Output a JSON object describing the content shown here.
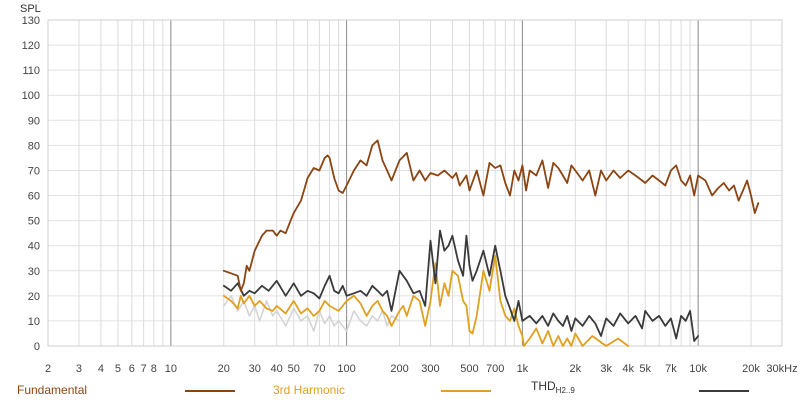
{
  "chart_data": {
    "type": "line",
    "ylabel": "SPL",
    "ylim": [
      0,
      130
    ],
    "yticks": [
      0,
      10,
      20,
      30,
      40,
      50,
      60,
      70,
      80,
      90,
      100,
      110,
      120,
      130
    ],
    "xscale": "log",
    "xlim": [
      2,
      30000
    ],
    "xticks": [
      {
        "v": 2,
        "t": "2"
      },
      {
        "v": 3,
        "t": "3"
      },
      {
        "v": 4,
        "t": "4"
      },
      {
        "v": 5,
        "t": "5"
      },
      {
        "v": 6,
        "t": "6"
      },
      {
        "v": 7,
        "t": "7"
      },
      {
        "v": 8,
        "t": "8"
      },
      {
        "v": 10,
        "t": "10"
      },
      {
        "v": 20,
        "t": "20"
      },
      {
        "v": 30,
        "t": "30"
      },
      {
        "v": 40,
        "t": "40"
      },
      {
        "v": 50,
        "t": "50"
      },
      {
        "v": 70,
        "t": "70"
      },
      {
        "v": 100,
        "t": "100"
      },
      {
        "v": 200,
        "t": "200"
      },
      {
        "v": 300,
        "t": "300"
      },
      {
        "v": 500,
        "t": "500"
      },
      {
        "v": 700,
        "t": "700"
      },
      {
        "v": 1000,
        "t": "1k"
      },
      {
        "v": 2000,
        "t": "2k"
      },
      {
        "v": 3000,
        "t": "3k"
      },
      {
        "v": 4000,
        "t": "4k"
      },
      {
        "v": 5000,
        "t": "5k"
      },
      {
        "v": 7000,
        "t": "7k"
      },
      {
        "v": 10000,
        "t": "10k"
      },
      {
        "v": 20000,
        "t": "20k"
      },
      {
        "v": 30000,
        "t": "30kHz"
      }
    ],
    "grid": true,
    "legend_position": "bottom",
    "series": [
      {
        "name": "Fundamental",
        "color": "#8b4513",
        "x": [
          20,
          22,
          24,
          25,
          26,
          27,
          28,
          30,
          33,
          35,
          38,
          40,
          42,
          45,
          48,
          50,
          55,
          60,
          65,
          70,
          75,
          78,
          80,
          85,
          90,
          95,
          100,
          110,
          120,
          130,
          140,
          150,
          160,
          170,
          180,
          200,
          220,
          240,
          260,
          280,
          300,
          330,
          360,
          400,
          420,
          440,
          460,
          480,
          500,
          550,
          600,
          650,
          700,
          750,
          800,
          850,
          900,
          950,
          1000,
          1050,
          1100,
          1200,
          1300,
          1400,
          1500,
          1600,
          1700,
          1800,
          1900,
          2000,
          2200,
          2400,
          2600,
          2800,
          3000,
          3300,
          3600,
          4000,
          4400,
          4800,
          5000,
          5500,
          6000,
          6500,
          7000,
          7500,
          8000,
          8500,
          9000,
          9500,
          10000,
          11000,
          12000,
          13000,
          14000,
          15000,
          16000,
          17000,
          18000,
          19000,
          20000,
          21000,
          22000
        ],
        "y": [
          30,
          29,
          28,
          22,
          25,
          32,
          30,
          38,
          44,
          46,
          46,
          44,
          46,
          45,
          50,
          53,
          58,
          67,
          71,
          70,
          75,
          76,
          75,
          67,
          62,
          61,
          64,
          70,
          74,
          72,
          80,
          82,
          74,
          70,
          66,
          74,
          77,
          66,
          70,
          66,
          69,
          68,
          70,
          67,
          69,
          64,
          66,
          68,
          62,
          70,
          60,
          73,
          71,
          72,
          65,
          60,
          70,
          66,
          72,
          62,
          70,
          68,
          74,
          63,
          73,
          71,
          68,
          65,
          72,
          70,
          66,
          70,
          60,
          70,
          66,
          70,
          67,
          70,
          68,
          66,
          65,
          68,
          66,
          64,
          70,
          72,
          66,
          64,
          68,
          60,
          68,
          66,
          60,
          63,
          65,
          62,
          64,
          58,
          62,
          66,
          60,
          53,
          57
        ]
      },
      {
        "name": "3rd Harmonic",
        "color": "#e0a020",
        "x": [
          20,
          22,
          24,
          25,
          26,
          28,
          30,
          32,
          35,
          38,
          40,
          45,
          50,
          55,
          60,
          65,
          70,
          75,
          80,
          90,
          100,
          110,
          120,
          130,
          140,
          150,
          160,
          170,
          180,
          200,
          210,
          220,
          240,
          260,
          280,
          300,
          320,
          340,
          360,
          380,
          400,
          430,
          460,
          480,
          500,
          520,
          550,
          600,
          650,
          700,
          750,
          800,
          850,
          900,
          950,
          1000,
          1020,
          1100,
          1200,
          1300,
          1400,
          1500,
          1600,
          1700,
          1800,
          1900,
          2000,
          2200,
          2500,
          3000,
          3500,
          4000
        ],
        "y": [
          20,
          18,
          15,
          20,
          17,
          20,
          16,
          18,
          15,
          14,
          16,
          13,
          18,
          13,
          15,
          12,
          14,
          18,
          16,
          14,
          18,
          20,
          17,
          12,
          16,
          18,
          14,
          12,
          8,
          14,
          16,
          12,
          20,
          18,
          8,
          18,
          33,
          16,
          25,
          20,
          30,
          28,
          18,
          16,
          6,
          5,
          12,
          30,
          22,
          36,
          18,
          12,
          10,
          15,
          8,
          4,
          0,
          3,
          7,
          1,
          6,
          0,
          4,
          0,
          3,
          0,
          5,
          0,
          4,
          0,
          3,
          0
        ]
      },
      {
        "name": "THD_H2..9",
        "color": "#3a3a3a",
        "x": [
          20,
          22,
          24,
          26,
          28,
          30,
          33,
          36,
          40,
          45,
          50,
          55,
          60,
          65,
          70,
          75,
          80,
          85,
          90,
          95,
          100,
          110,
          120,
          130,
          140,
          150,
          160,
          170,
          180,
          200,
          220,
          240,
          260,
          280,
          300,
          320,
          340,
          360,
          380,
          400,
          430,
          460,
          480,
          500,
          520,
          550,
          600,
          650,
          700,
          750,
          800,
          850,
          900,
          950,
          1000,
          1100,
          1200,
          1300,
          1400,
          1500,
          1600,
          1700,
          1800,
          1900,
          2000,
          2200,
          2400,
          2600,
          2800,
          3000,
          3300,
          3600,
          4000,
          4400,
          4800,
          5000,
          5500,
          6000,
          6500,
          7000,
          7500,
          8000,
          8500,
          9000,
          9500,
          10000
        ],
        "y": [
          24,
          22,
          25,
          20,
          22,
          21,
          24,
          22,
          26,
          20,
          25,
          20,
          22,
          21,
          19,
          24,
          28,
          22,
          21,
          24,
          20,
          21,
          22,
          20,
          24,
          22,
          20,
          22,
          14,
          30,
          26,
          21,
          22,
          16,
          42,
          25,
          46,
          38,
          40,
          44,
          34,
          28,
          44,
          32,
          26,
          30,
          38,
          28,
          40,
          30,
          20,
          15,
          10,
          18,
          10,
          12,
          9,
          12,
          8,
          13,
          10,
          8,
          12,
          6,
          11,
          8,
          12,
          9,
          4,
          11,
          8,
          13,
          9,
          12,
          7,
          14,
          10,
          12,
          8,
          11,
          3,
          12,
          10,
          14,
          2,
          4
        ]
      },
      {
        "name": "",
        "color": "#d4d4d4",
        "x": [
          20,
          22,
          24,
          26,
          28,
          30,
          32,
          35,
          38,
          40,
          45,
          50,
          55,
          60,
          65,
          70,
          75,
          80,
          85,
          90,
          100,
          110,
          120,
          130,
          140,
          150,
          160,
          170,
          180,
          200
        ],
        "y": [
          16,
          20,
          14,
          18,
          12,
          16,
          10,
          18,
          12,
          14,
          8,
          15,
          10,
          12,
          6,
          14,
          9,
          12,
          8,
          10,
          6,
          14,
          10,
          8,
          12,
          10,
          14,
          8,
          12,
          10
        ]
      }
    ]
  },
  "legend": {
    "fundamental": "Fundamental",
    "third": "3rd Harmonic",
    "thd_main": "THD",
    "thd_sub": "H2..9"
  }
}
